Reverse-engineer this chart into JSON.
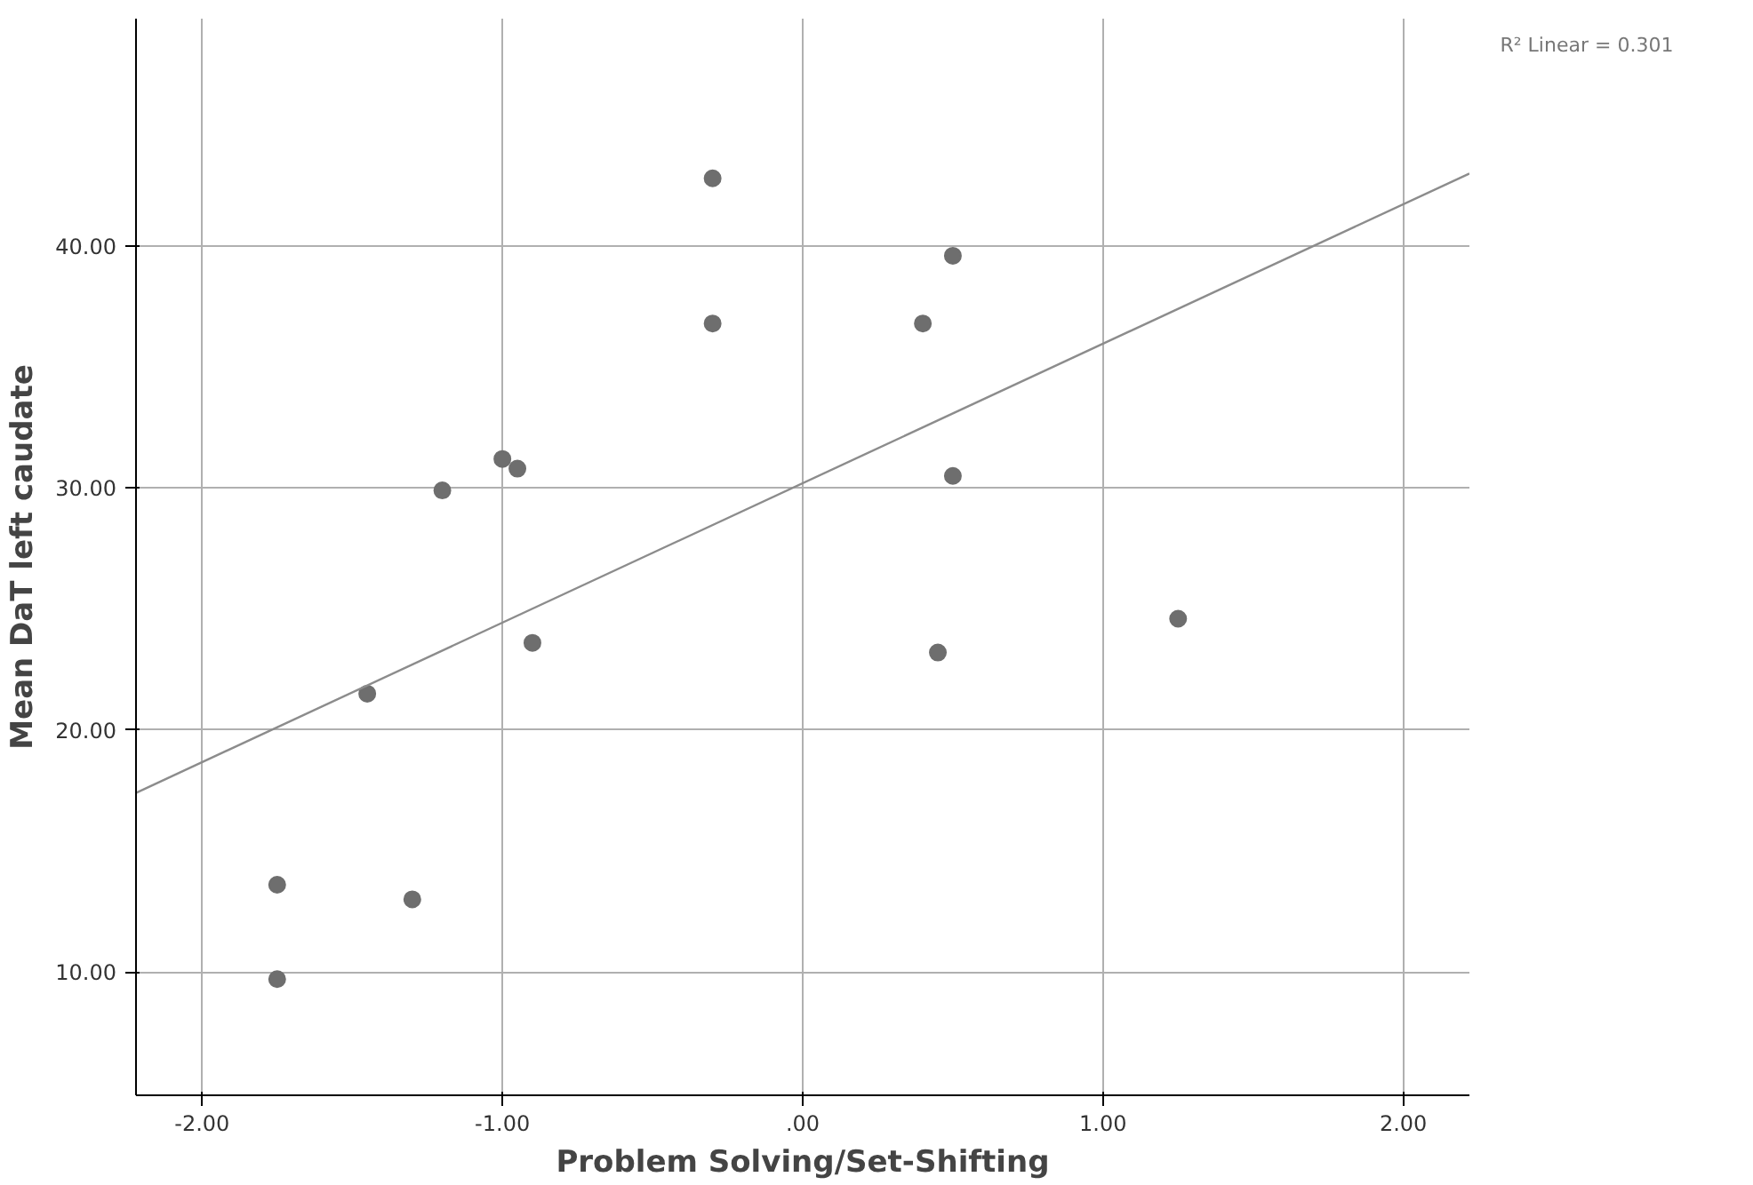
{
  "chart_data": {
    "type": "scatter",
    "xlabel": "Problem Solving/Set-Shifting",
    "ylabel": "Mean DaT left caudate",
    "annotations": [
      "R² Linear = 0.301"
    ],
    "xlim": [
      -2.22,
      2.22
    ],
    "ylim": [
      4.9,
      49.4
    ],
    "xticks": [
      {
        "value": -2,
        "label": "-2.00"
      },
      {
        "value": -1,
        "label": "-1.00"
      },
      {
        "value": 0,
        "label": ".00"
      },
      {
        "value": 1,
        "label": "1.00"
      },
      {
        "value": 2,
        "label": "2.00"
      }
    ],
    "yticks": [
      {
        "value": 10,
        "label": "10.00"
      },
      {
        "value": 20,
        "label": "20.00"
      },
      {
        "value": 30,
        "label": "30.00"
      },
      {
        "value": 40,
        "label": "40.00"
      }
    ],
    "grid": true,
    "series": [
      {
        "marker": "circle",
        "color": "#6e6e6e",
        "x": [
          -0.3,
          0.5,
          -0.3,
          0.4,
          -1.0,
          -0.95,
          -1.2,
          0.5,
          -0.9,
          0.45,
          1.25,
          -1.45,
          -1.75,
          -1.3,
          -1.75
        ],
        "values": [
          42.8,
          39.6,
          36.8,
          36.8,
          31.2,
          30.8,
          29.9,
          30.5,
          23.6,
          23.2,
          24.6,
          21.5,
          13.6,
          13.0,
          9.7
        ]
      },
      {
        "type": "line",
        "color": "#8c8c8c",
        "x": [
          -2.22,
          2.22
        ],
        "values": [
          17.4,
          43.0
        ]
      }
    ]
  }
}
